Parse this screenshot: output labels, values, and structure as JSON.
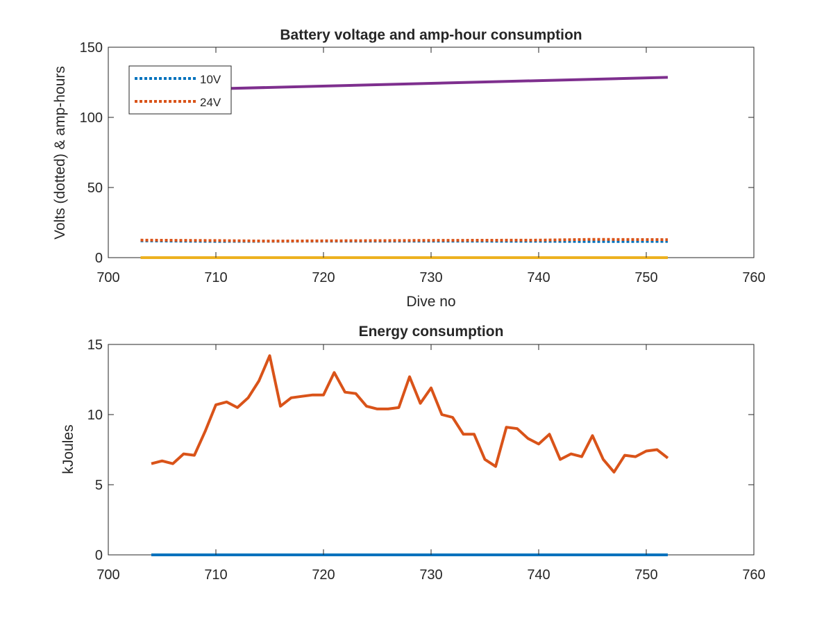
{
  "chart_data": [
    {
      "type": "line",
      "title": "Battery voltage and amp-hour consumption",
      "xlabel": "Dive no",
      "ylabel": "Volts (dotted) & amp-hours",
      "xlim": [
        700,
        760
      ],
      "ylim": [
        0,
        150
      ],
      "xticks": [
        "700",
        "710",
        "720",
        "730",
        "740",
        "750",
        "760"
      ],
      "yticks": [
        "0",
        "50",
        "100",
        "150"
      ],
      "legend_position": "top-left",
      "series": [
        {
          "name": "10V",
          "color": "#0072BD",
          "style": "dotted",
          "x": [
            703,
            710,
            720,
            730,
            740,
            745,
            752
          ],
          "y": [
            12,
            11.6,
            11.8,
            11.8,
            11.7,
            11.5,
            11.6
          ]
        },
        {
          "name": "24V",
          "color": "#D95319",
          "style": "dotted",
          "x": [
            703,
            710,
            715,
            720,
            730,
            740,
            745,
            752
          ],
          "y": [
            12.5,
            12.2,
            11.8,
            12,
            12.3,
            12.5,
            13,
            12.8
          ]
        },
        {
          "color": "#7E2F8E",
          "style": "solid",
          "x": [
            703,
            752
          ],
          "y": [
            119,
            128.5
          ]
        },
        {
          "color": "#EDB120",
          "style": "solid",
          "x": [
            703,
            752
          ],
          "y": [
            0,
            0
          ]
        }
      ]
    },
    {
      "type": "line",
      "title": "Energy consumption",
      "xlabel": "",
      "ylabel": "kJoules",
      "xlim": [
        700,
        760
      ],
      "ylim": [
        0,
        15
      ],
      "xticks": [
        "700",
        "710",
        "720",
        "730",
        "740",
        "750",
        "760"
      ],
      "yticks": [
        "0",
        "5",
        "10",
        "15"
      ],
      "series": [
        {
          "color": "#D95319",
          "style": "solid",
          "x": [
            704,
            705,
            706,
            707,
            708,
            709,
            710,
            711,
            712,
            713,
            714,
            715,
            716,
            717,
            718,
            719,
            720,
            721,
            722,
            723,
            724,
            725,
            726,
            727,
            728,
            729,
            730,
            731,
            732,
            733,
            734,
            735,
            736,
            737,
            738,
            739,
            740,
            741,
            742,
            743,
            744,
            745,
            746,
            747,
            748,
            749,
            750,
            751,
            752
          ],
          "y": [
            6.5,
            6.7,
            6.5,
            7.2,
            7.1,
            8.8,
            10.7,
            10.9,
            10.5,
            11.2,
            12.4,
            14.2,
            10.6,
            11.2,
            11.3,
            11.4,
            11.4,
            13.0,
            11.6,
            11.5,
            10.6,
            10.4,
            10.4,
            10.5,
            12.7,
            10.8,
            11.9,
            10.0,
            9.8,
            8.6,
            8.6,
            6.8,
            6.3,
            9.1,
            9.0,
            8.3,
            7.9,
            8.6,
            6.8,
            7.2,
            7.0,
            8.5,
            6.8,
            5.9,
            7.1,
            7.0,
            7.4,
            7.5,
            6.9
          ]
        },
        {
          "color": "#0072BD",
          "style": "solid",
          "x": [
            704,
            752
          ],
          "y": [
            0,
            0
          ]
        }
      ]
    }
  ]
}
